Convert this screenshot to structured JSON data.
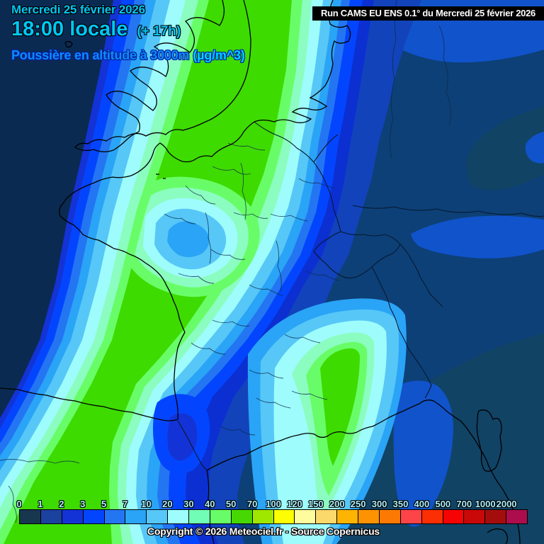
{
  "header": {
    "date": "Mercredi 25 février 2026",
    "time": "18:00 locale",
    "offset": "(+ 17h)",
    "parameter": "Poussière en altitude à 3000m",
    "unit": "(µg/m^3)",
    "run": "Run CAMS EU ENS 0.1° du Mercredi 25 février 2026"
  },
  "footer": {
    "copyright": "Copyright © 2026 Meteociel.fr - Source Copernicus"
  },
  "colorbar": {
    "unit": "µg/m^3",
    "labels": [
      "0",
      "1",
      "2",
      "3",
      "5",
      "7",
      "10",
      "20",
      "30",
      "40",
      "50",
      "70",
      "100",
      "120",
      "150",
      "200",
      "250",
      "300",
      "350",
      "400",
      "500",
      "700",
      "1000",
      "2000"
    ],
    "colors": [
      "#17374f",
      "#1b429f",
      "#1433d6",
      "#0345fe",
      "#2475f2",
      "#2aa4f6",
      "#57c7f7",
      "#9efcfc",
      "#71fdb5",
      "#68fd68",
      "#47d804",
      "#9fe700",
      "#fdfd03",
      "#fdfd9e",
      "#fcd96b",
      "#fdb403",
      "#fd9303",
      "#fc7a03",
      "#fd4449",
      "#fc2e03",
      "#f60303",
      "#c90808",
      "#a50d0d",
      "#ad0d4d"
    ]
  },
  "map": {
    "palette": {
      "ocean": "#0a2a52",
      "bg": "#0d4077",
      "slate": "#114365",
      "bright": "#1153cb",
      "mid": "#1243bb",
      "royal": "#0c2fd2",
      "royal2": "#1433d6",
      "bblue": "#0345fe",
      "mblue": "#2475f2",
      "lblue": "#2aa4f6",
      "cyan": "#57c7f7",
      "pale": "#9efcfc",
      "mint": "#8cfdc0",
      "lgreen": "#68fd68",
      "green": "#3edb00"
    }
  }
}
